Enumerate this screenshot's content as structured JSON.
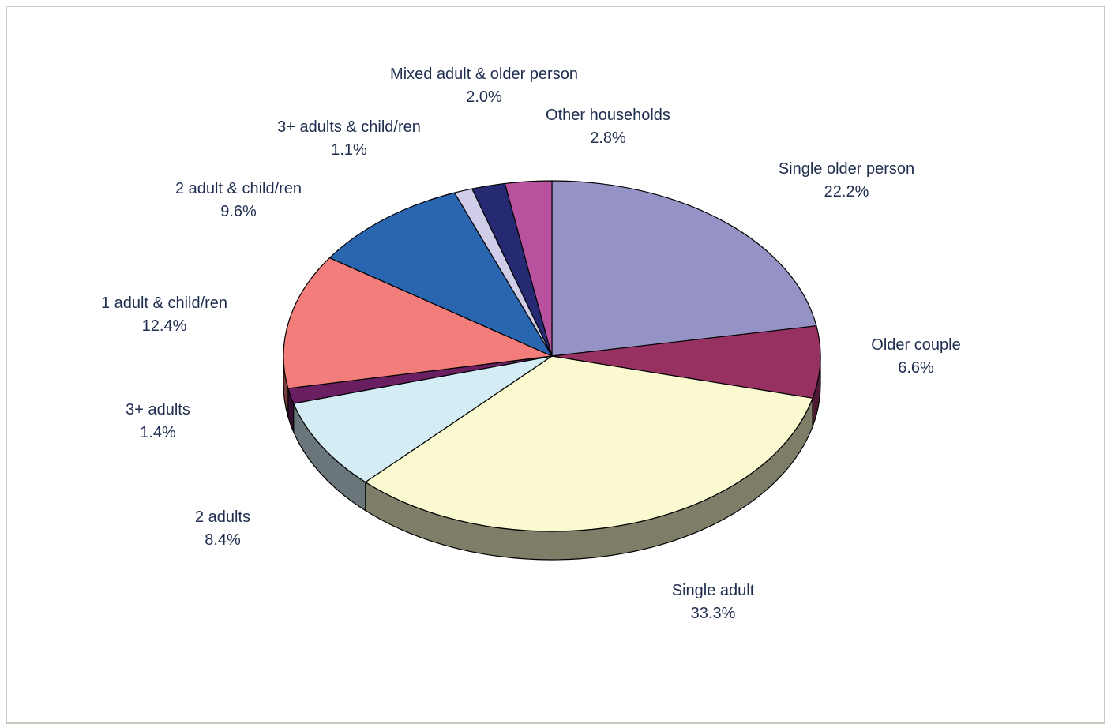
{
  "chart_data": {
    "type": "pie",
    "title": "",
    "slices": [
      {
        "label": "Single older person",
        "value": 22.2,
        "value_label": "22.2%",
        "color": "#9593c5"
      },
      {
        "label": "Older couple",
        "value": 6.6,
        "value_label": "6.6%",
        "color": "#973161"
      },
      {
        "label": "Single adult",
        "value": 33.3,
        "value_label": "33.3%",
        "color": "#fbf9cf"
      },
      {
        "label": "2 adults",
        "value": 8.4,
        "value_label": "8.4%",
        "color": "#d4ecf4"
      },
      {
        "label": "3+ adults",
        "value": 1.4,
        "value_label": "1.4%",
        "color": "#6b1f63"
      },
      {
        "label": "1 adult & child/ren",
        "value": 12.4,
        "value_label": "12.4%",
        "color": "#f27d7b"
      },
      {
        "label": "2 adult & child/ren",
        "value": 9.6,
        "value_label": "9.6%",
        "color": "#2a65b0"
      },
      {
        "label": "3+ adults & child/ren",
        "value": 1.1,
        "value_label": "1.1%",
        "color": "#cfcde8"
      },
      {
        "label": "Mixed adult & older person",
        "value": 2.0,
        "value_label": "2.0%",
        "color": "#262a73"
      },
      {
        "label": "Other households",
        "value": 2.8,
        "value_label": "2.8%",
        "color": "#b9529e"
      }
    ],
    "style": "3d-tilted",
    "legend": "none",
    "data_labels": "outside"
  }
}
